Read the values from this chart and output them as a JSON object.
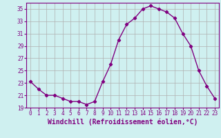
{
  "x": [
    0,
    1,
    2,
    3,
    4,
    5,
    6,
    7,
    8,
    9,
    10,
    11,
    12,
    13,
    14,
    15,
    16,
    17,
    18,
    19,
    20,
    21,
    22,
    23
  ],
  "y": [
    23.2,
    22.0,
    21.0,
    21.0,
    20.5,
    20.0,
    20.0,
    19.5,
    20.0,
    23.2,
    26.0,
    30.0,
    32.5,
    33.5,
    35.0,
    35.5,
    35.0,
    34.5,
    33.5,
    31.0,
    29.0,
    25.0,
    22.5,
    20.5
  ],
  "line_color": "#800080",
  "marker": "D",
  "marker_size": 2.2,
  "linewidth": 1.0,
  "xlabel": "Windchill (Refroidissement éolien,°C)",
  "xlabel_fontsize": 7,
  "xlim": [
    -0.5,
    23.5
  ],
  "ylim": [
    19,
    36
  ],
  "yticks": [
    19,
    21,
    23,
    25,
    27,
    29,
    31,
    33,
    35
  ],
  "xtick_labels": [
    "0",
    "1",
    "2",
    "3",
    "4",
    "5",
    "6",
    "7",
    "8",
    "9",
    "10",
    "11",
    "12",
    "13",
    "14",
    "15",
    "16",
    "17",
    "18",
    "19",
    "20",
    "21",
    "22",
    "23"
  ],
  "bg_color": "#cff0f0",
  "grid_color": "#b0b0b0",
  "tick_color": "#800080",
  "tick_fontsize": 5.5,
  "spine_color": "#800080"
}
